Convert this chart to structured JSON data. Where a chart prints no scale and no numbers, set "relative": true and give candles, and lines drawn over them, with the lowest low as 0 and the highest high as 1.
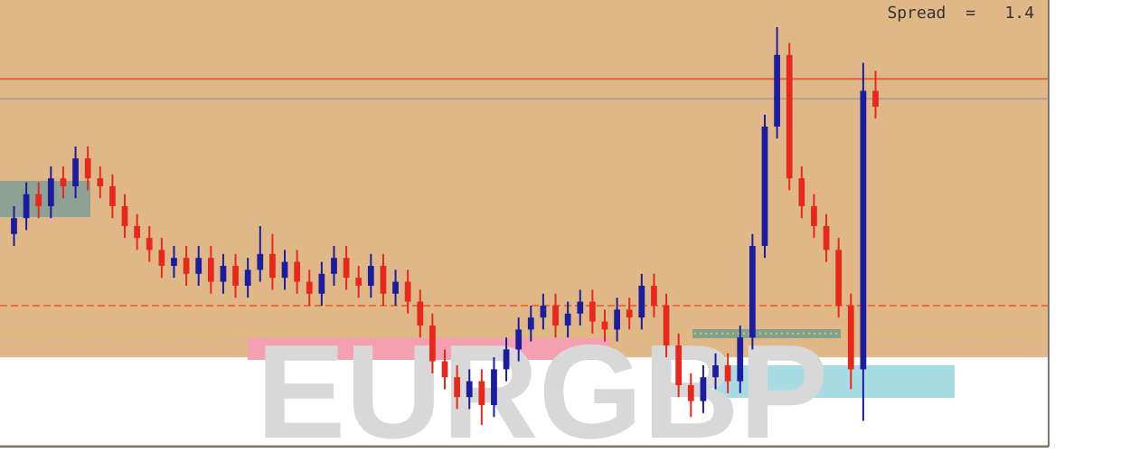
{
  "chart_data": {
    "type": "candlestick",
    "relative": true,
    "categories": [
      null,
      null,
      null,
      null,
      null,
      null,
      null,
      null,
      null,
      null,
      null,
      null,
      null,
      null,
      null,
      null,
      null,
      null,
      null,
      null,
      null,
      null,
      null,
      null,
      null,
      null,
      null,
      null,
      null,
      null,
      null,
      null,
      null,
      null,
      null,
      null,
      null,
      null,
      null,
      null,
      null,
      null,
      null,
      null,
      null,
      null,
      null,
      null,
      null,
      null,
      null,
      null,
      null,
      null,
      null,
      null,
      null,
      null,
      null,
      null,
      null,
      null,
      null,
      null,
      null,
      null,
      null,
      null,
      null,
      null,
      null
    ],
    "ohlc": [
      [
        0.48,
        0.55,
        0.45,
        0.52
      ],
      [
        0.52,
        0.61,
        0.49,
        0.58
      ],
      [
        0.58,
        0.61,
        0.52,
        0.55
      ],
      [
        0.55,
        0.65,
        0.52,
        0.62
      ],
      [
        0.62,
        0.65,
        0.57,
        0.6
      ],
      [
        0.6,
        0.7,
        0.57,
        0.67
      ],
      [
        0.67,
        0.7,
        0.59,
        0.62
      ],
      [
        0.62,
        0.65,
        0.57,
        0.6
      ],
      [
        0.6,
        0.63,
        0.52,
        0.55
      ],
      [
        0.55,
        0.58,
        0.47,
        0.5
      ],
      [
        0.5,
        0.53,
        0.44,
        0.47
      ],
      [
        0.47,
        0.5,
        0.41,
        0.44
      ],
      [
        0.44,
        0.47,
        0.37,
        0.4
      ],
      [
        0.4,
        0.45,
        0.37,
        0.42
      ],
      [
        0.42,
        0.45,
        0.35,
        0.38
      ],
      [
        0.38,
        0.45,
        0.35,
        0.42
      ],
      [
        0.42,
        0.45,
        0.33,
        0.36
      ],
      [
        0.36,
        0.43,
        0.33,
        0.4
      ],
      [
        0.4,
        0.43,
        0.32,
        0.35
      ],
      [
        0.35,
        0.42,
        0.32,
        0.39
      ],
      [
        0.39,
        0.5,
        0.36,
        0.43
      ],
      [
        0.43,
        0.48,
        0.34,
        0.37
      ],
      [
        0.37,
        0.44,
        0.34,
        0.41
      ],
      [
        0.41,
        0.44,
        0.33,
        0.36
      ],
      [
        0.36,
        0.39,
        0.3,
        0.33
      ],
      [
        0.33,
        0.41,
        0.3,
        0.38
      ],
      [
        0.38,
        0.45,
        0.35,
        0.42
      ],
      [
        0.42,
        0.45,
        0.34,
        0.37
      ],
      [
        0.37,
        0.4,
        0.32,
        0.35
      ],
      [
        0.35,
        0.43,
        0.32,
        0.4
      ],
      [
        0.4,
        0.43,
        0.3,
        0.33
      ],
      [
        0.33,
        0.39,
        0.3,
        0.36
      ],
      [
        0.36,
        0.39,
        0.28,
        0.31
      ],
      [
        0.31,
        0.34,
        0.22,
        0.25
      ],
      [
        0.25,
        0.28,
        0.13,
        0.16
      ],
      [
        0.16,
        0.19,
        0.09,
        0.12
      ],
      [
        0.12,
        0.15,
        0.04,
        0.07
      ],
      [
        0.07,
        0.14,
        0.04,
        0.11
      ],
      [
        0.11,
        0.14,
        0.0,
        0.05
      ],
      [
        0.05,
        0.17,
        0.02,
        0.14
      ],
      [
        0.14,
        0.22,
        0.11,
        0.19
      ],
      [
        0.19,
        0.27,
        0.16,
        0.24
      ],
      [
        0.24,
        0.3,
        0.21,
        0.27
      ],
      [
        0.27,
        0.33,
        0.24,
        0.3
      ],
      [
        0.3,
        0.33,
        0.22,
        0.25
      ],
      [
        0.25,
        0.31,
        0.22,
        0.28
      ],
      [
        0.28,
        0.34,
        0.25,
        0.31
      ],
      [
        0.31,
        0.34,
        0.23,
        0.26
      ],
      [
        0.26,
        0.29,
        0.21,
        0.24
      ],
      [
        0.24,
        0.32,
        0.21,
        0.29
      ],
      [
        0.29,
        0.32,
        0.24,
        0.27
      ],
      [
        0.27,
        0.38,
        0.24,
        0.35
      ],
      [
        0.35,
        0.38,
        0.27,
        0.3
      ],
      [
        0.3,
        0.33,
        0.17,
        0.2
      ],
      [
        0.2,
        0.23,
        0.07,
        0.1
      ],
      [
        0.1,
        0.13,
        0.02,
        0.06
      ],
      [
        0.06,
        0.15,
        0.03,
        0.12
      ],
      [
        0.12,
        0.18,
        0.09,
        0.15
      ],
      [
        0.15,
        0.18,
        0.08,
        0.11
      ],
      [
        0.11,
        0.25,
        0.08,
        0.22
      ],
      [
        0.22,
        0.48,
        0.19,
        0.45
      ],
      [
        0.45,
        0.78,
        0.42,
        0.75
      ],
      [
        0.75,
        1.0,
        0.72,
        0.93
      ],
      [
        0.93,
        0.96,
        0.59,
        0.62
      ],
      [
        0.62,
        0.65,
        0.52,
        0.55
      ],
      [
        0.55,
        0.58,
        0.47,
        0.5
      ],
      [
        0.5,
        0.53,
        0.41,
        0.44
      ],
      [
        0.44,
        0.47,
        0.27,
        0.3
      ],
      [
        0.3,
        0.33,
        0.09,
        0.14
      ],
      [
        0.14,
        0.91,
        0.01,
        0.84
      ],
      [
        0.84,
        0.89,
        0.77,
        0.8
      ]
    ],
    "colors": [
      "#1c1ca0",
      "#1c1ca0",
      "#e8281c",
      "#1c1ca0",
      "#e8281c",
      "#1c1ca0",
      "#e8281c",
      "#e8281c",
      "#e8281c",
      "#e8281c",
      "#e8281c",
      "#e8281c",
      "#e8281c",
      "#1c1ca0",
      "#e8281c",
      "#1c1ca0",
      "#e8281c",
      "#1c1ca0",
      "#e8281c",
      "#1c1ca0",
      "#1c1ca0",
      "#e8281c",
      "#1c1ca0",
      "#e8281c",
      "#e8281c",
      "#1c1ca0",
      "#1c1ca0",
      "#e8281c",
      "#e8281c",
      "#1c1ca0",
      "#e8281c",
      "#1c1ca0",
      "#e8281c",
      "#e8281c",
      "#e8281c",
      "#e8281c",
      "#e8281c",
      "#1c1ca0",
      "#e8281c",
      "#1c1ca0",
      "#1c1ca0",
      "#1c1ca0",
      "#1c1ca0",
      "#1c1ca0",
      "#e8281c",
      "#1c1ca0",
      "#1c1ca0",
      "#e8281c",
      "#e8281c",
      "#1c1ca0",
      "#e8281c",
      "#1c1ca0",
      "#e8281c",
      "#e8281c",
      "#e8281c",
      "#e8281c",
      "#1c1ca0",
      "#1c1ca0",
      "#e8281c",
      "#1c1ca0",
      "#1c1ca0",
      "#1c1ca0",
      "#1c1ca0",
      "#e8281c",
      "#e8281c",
      "#e8281c",
      "#e8281c",
      "#e8281c",
      "#e8281c",
      "#1c1ca0",
      "#e8281c"
    ],
    "ref_lines": [
      {
        "axis": "y",
        "value": 0.87,
        "color": "#e8603c",
        "line_style": "solid"
      },
      {
        "axis": "y",
        "value": 0.82,
        "color": "#b0a090",
        "line_style": "solid"
      },
      {
        "axis": "y",
        "value": 0.3,
        "color": "#e87040",
        "line_style": "dashed"
      },
      {
        "axis": "y",
        "value": 0.23,
        "color": "#d8c860",
        "line_style": "dotted"
      }
    ],
    "bands": [
      {
        "axis": "y",
        "from": -0.05,
        "to": 0.17,
        "color": "#ffffff"
      }
    ],
    "annotations": [
      "Spread  =   1.4",
      "EURGBP"
    ],
    "grid": false
  }
}
